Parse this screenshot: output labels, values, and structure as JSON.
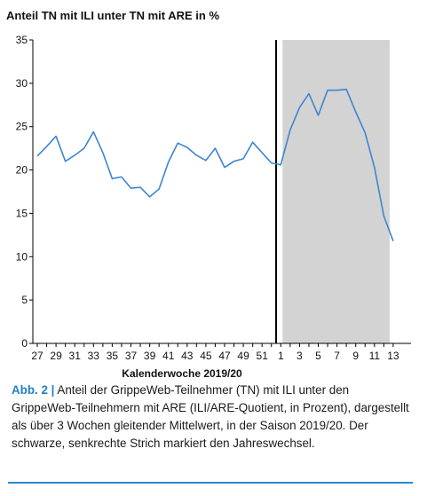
{
  "figure": {
    "label": "Abb. 2",
    "separator": "|",
    "caption": "Anteil der GrippeWeb-Teilnehmer (TN) mit ILI unter den GrippeWeb-Teilnehmern mit ARE (ILI/ARE-Quotient, in Prozent), dargestellt als über 3 Wochen gleitender Mittelwert, in der Saison 2019/20. Der schwarze, senkrechte Strich markiert den Jahreswechsel."
  },
  "colors": {
    "line": "#3d85d1",
    "shade": "#d3d3d3",
    "divider": "#000000",
    "accent": "#1e7fc3"
  },
  "chart_data": {
    "type": "line",
    "title": "Anteil TN mit ILI unter TN mit ARE in %",
    "xlabel": "Kalenderwoche 2019/20",
    "ylabel": "",
    "ylim": [
      0,
      35
    ],
    "yticks": [
      0,
      5,
      10,
      15,
      20,
      25,
      30,
      35
    ],
    "grid": false,
    "x": [
      "27",
      "28",
      "29",
      "30",
      "31",
      "32",
      "33",
      "34",
      "35",
      "36",
      "37",
      "38",
      "39",
      "40",
      "41",
      "42",
      "43",
      "44",
      "45",
      "46",
      "47",
      "48",
      "49",
      "50",
      "51",
      "52",
      "1",
      "2",
      "3",
      "4",
      "5",
      "6",
      "7",
      "8",
      "9",
      "10",
      "11",
      "12",
      "13"
    ],
    "xtick_labels": [
      "27",
      "29",
      "31",
      "33",
      "35",
      "37",
      "39",
      "41",
      "43",
      "45",
      "47",
      "49",
      "51",
      "1",
      "3",
      "5",
      "7",
      "9",
      "11",
      "13"
    ],
    "series": [
      {
        "values": [
          21.6,
          22.7,
          23.9,
          21.0,
          21.7,
          22.5,
          24.4,
          22.0,
          19.0,
          19.2,
          17.9,
          18.0,
          16.9,
          17.8,
          20.9,
          23.1,
          22.6,
          21.7,
          21.1,
          22.5,
          20.3,
          21.0,
          21.3,
          23.2,
          22.0,
          20.8,
          20.6,
          24.6,
          27.2,
          28.8,
          26.3,
          29.2,
          29.2,
          29.3,
          26.7,
          24.3,
          20.3,
          14.7,
          11.8
        ]
      }
    ],
    "year_change_after": "52",
    "shaded_from": "1",
    "shaded_to": "13"
  }
}
